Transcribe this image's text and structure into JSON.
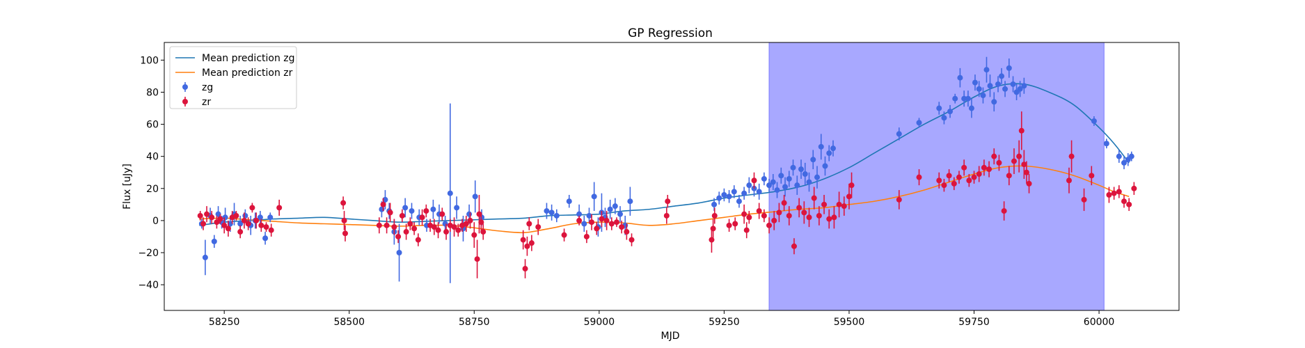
{
  "chart_data": {
    "type": "scatter",
    "title": "GP Regression",
    "xlabel": "MJD",
    "ylabel": "Flux [uJy]",
    "xlim": [
      58130,
      60160
    ],
    "ylim": [
      -56,
      111
    ],
    "xticks": [
      58250,
      58500,
      58750,
      59000,
      59250,
      59500,
      59750,
      60000
    ],
    "yticks": [
      -40,
      -20,
      0,
      20,
      40,
      60,
      80,
      100
    ],
    "grid": false,
    "legend_position": "top-left",
    "shaded_region": {
      "x": [
        59340,
        60010
      ],
      "color": "#a8a8ff"
    },
    "lines": [
      {
        "name": "Mean prediction zg",
        "color": "#1f77b4",
        "x": [
          58200,
          58250,
          58300,
          58350,
          58400,
          58450,
          58500,
          58550,
          58600,
          58650,
          58700,
          58750,
          58800,
          58850,
          58900,
          58950,
          59000,
          59050,
          59100,
          59150,
          59200,
          59250,
          59300,
          59350,
          59400,
          59450,
          59500,
          59550,
          59600,
          59650,
          59700,
          59750,
          59800,
          59850,
          59900,
          59950,
          60000,
          60030,
          60060
        ],
        "y": [
          -3,
          -1,
          0,
          1,
          1.5,
          2,
          1,
          0,
          -1,
          -0.5,
          0,
          0.5,
          1,
          1.5,
          3,
          3.5,
          4,
          6,
          7,
          9,
          11,
          14,
          16,
          18,
          21,
          26,
          33,
          42,
          51,
          60,
          68,
          77,
          84,
          85,
          80,
          72,
          58,
          48,
          36
        ]
      },
      {
        "name": "Mean prediction zr",
        "color": "#ff7f0e",
        "x": [
          58200,
          58250,
          58300,
          58350,
          58400,
          58450,
          58500,
          58550,
          58600,
          58650,
          58700,
          58750,
          58800,
          58850,
          58900,
          58950,
          59000,
          59050,
          59100,
          59150,
          59200,
          59250,
          59300,
          59350,
          59400,
          59450,
          59500,
          59550,
          59600,
          59650,
          59700,
          59750,
          59800,
          59850,
          59900,
          59950,
          60000,
          60030,
          60060
        ],
        "y": [
          1,
          1.5,
          0.5,
          -0.5,
          -1.5,
          -2,
          -2.5,
          -3,
          -3.5,
          -3,
          -3,
          -4.5,
          -6.5,
          -7.5,
          -5,
          -2,
          -1,
          -1.5,
          -3,
          -2,
          0,
          2,
          4,
          5.5,
          7,
          8,
          10,
          12,
          15,
          19,
          24,
          29,
          33,
          34,
          32,
          28,
          22,
          18,
          15
        ]
      }
    ],
    "series": [
      {
        "name": "zg",
        "color": "#4169e1",
        "x": [
          58205,
          58212,
          58222,
          58230,
          58238,
          58245,
          58252,
          58262,
          58270,
          58282,
          58292,
          58303,
          58312,
          58322,
          58332,
          58342,
          58565,
          58572,
          58580,
          58590,
          58600,
          58612,
          58625,
          58640,
          58655,
          58668,
          58680,
          58692,
          58702,
          58715,
          58728,
          58740,
          58752,
          58765,
          58895,
          58905,
          58915,
          58940,
          58960,
          58970,
          58980,
          58990,
          58998,
          59005,
          59012,
          59022,
          59032,
          59042,
          59052,
          59062,
          59230,
          59240,
          59250,
          59260,
          59270,
          59280,
          59290,
          59300,
          59310,
          59320,
          59330,
          59340,
          59348,
          59356,
          59364,
          59372,
          59380,
          59388,
          59396,
          59404,
          59412,
          59420,
          59428,
          59436,
          59444,
          59452,
          59460,
          59468,
          59600,
          59640,
          59680,
          59690,
          59702,
          59712,
          59722,
          59730,
          59738,
          59745,
          59752,
          59760,
          59768,
          59775,
          59782,
          59790,
          59798,
          59805,
          59812,
          59820,
          59828,
          59835,
          59842,
          59850,
          59990,
          60015,
          60040,
          60050,
          60058,
          60065
        ],
        "y": [
          -2,
          -23,
          3,
          -13,
          4,
          -1,
          2,
          -2,
          4,
          -2,
          3,
          -3,
          0,
          2,
          -11,
          2,
          7,
          13,
          6,
          -7,
          -20,
          8,
          6,
          2,
          -3,
          7,
          4,
          -2,
          17,
          8,
          -5,
          4,
          15,
          2,
          6,
          5,
          3,
          12,
          4,
          -2,
          3,
          15,
          -4,
          5,
          2,
          7,
          9,
          4,
          -3,
          12,
          10,
          14,
          16,
          15,
          18,
          12,
          17,
          22,
          20,
          18,
          26,
          22,
          24,
          19,
          28,
          21,
          26,
          33,
          22,
          32,
          29,
          24,
          38,
          27,
          46,
          34,
          42,
          45,
          54,
          61,
          70,
          64,
          68,
          76,
          89,
          76,
          76,
          70,
          86,
          82,
          78,
          94,
          84,
          74,
          85,
          90,
          82,
          95,
          85,
          80,
          82,
          84,
          62,
          48,
          40,
          36,
          38,
          40
        ],
        "yerr": [
          3,
          11,
          5,
          4,
          5,
          4,
          6,
          5,
          7,
          5,
          4,
          6,
          5,
          4,
          4,
          3,
          5,
          6,
          5,
          8,
          18,
          6,
          5,
          5,
          4,
          6,
          6,
          5,
          56,
          7,
          8,
          6,
          10,
          5,
          5,
          5,
          4,
          4,
          6,
          5,
          5,
          9,
          6,
          12,
          6,
          6,
          5,
          5,
          6,
          9,
          4,
          4,
          4,
          4,
          4,
          4,
          4,
          5,
          5,
          5,
          4,
          4,
          5,
          5,
          5,
          6,
          5,
          5,
          6,
          6,
          7,
          6,
          6,
          7,
          8,
          6,
          5,
          5,
          4,
          3,
          4,
          4,
          4,
          3,
          6,
          5,
          5,
          6,
          5,
          5,
          5,
          8,
          7,
          6,
          5,
          5,
          5,
          6,
          5,
          5,
          5,
          5,
          3,
          3,
          4,
          4,
          4,
          3
        ]
      },
      {
        "name": "zr",
        "color": "#dc143c",
        "x": [
          58202,
          58208,
          58215,
          58225,
          58235,
          58242,
          58250,
          58258,
          58266,
          58274,
          58282,
          58290,
          58298,
          58306,
          58314,
          58324,
          58334,
          58344,
          58360,
          58488,
          58490,
          58492,
          58560,
          58568,
          58575,
          58582,
          58590,
          58598,
          58606,
          58614,
          58622,
          58630,
          58638,
          58646,
          58654,
          58662,
          58670,
          58678,
          58686,
          58694,
          58702,
          58710,
          58718,
          58726,
          58734,
          58742,
          58750,
          58756,
          58760,
          58764,
          58768,
          58848,
          58852,
          58856,
          58860,
          58865,
          58878,
          58930,
          58960,
          58975,
          58985,
          58995,
          59005,
          59015,
          59025,
          59035,
          59045,
          59055,
          59065,
          59135,
          59137,
          59225,
          59228,
          59231,
          59260,
          59272,
          59290,
          59295,
          59300,
          59310,
          59320,
          59330,
          59340,
          59350,
          59360,
          59370,
          59380,
          59390,
          59400,
          59410,
          59420,
          59430,
          59440,
          59450,
          59460,
          59470,
          59480,
          59490,
          59500,
          59505,
          59600,
          59640,
          59680,
          59690,
          59700,
          59710,
          59720,
          59730,
          59740,
          59750,
          59760,
          59770,
          59780,
          59790,
          59800,
          59810,
          59820,
          59830,
          59840,
          59845,
          59850,
          59855,
          59860,
          59940,
          59945,
          59970,
          59985,
          60020,
          60030,
          60040,
          60050,
          60060,
          60070
        ],
        "y": [
          3,
          -2,
          4,
          2,
          -1,
          1,
          -3,
          -5,
          2,
          3,
          -7,
          0,
          -2,
          8,
          0,
          -3,
          -4,
          -6,
          8,
          11,
          0,
          -8,
          -3,
          10,
          -3,
          5,
          -4,
          -10,
          3,
          -7,
          -2,
          -5,
          -12,
          2,
          6,
          -3,
          -4,
          -6,
          4,
          -7,
          -3,
          -4,
          -6,
          -3,
          -2,
          0,
          -9,
          -24,
          4,
          -1,
          -7,
          -12,
          -30,
          -16,
          -2,
          -14,
          -4,
          -9,
          0,
          -10,
          -1,
          -5,
          1,
          0,
          -2,
          -1,
          -4,
          -7,
          -12,
          3,
          12,
          -12,
          -5,
          3,
          -3,
          -2,
          4,
          -6,
          2,
          25,
          6,
          3,
          -3,
          0,
          5,
          11,
          3,
          -16,
          8,
          5,
          2,
          14,
          3,
          10,
          1,
          2,
          10,
          9,
          15,
          22,
          13,
          27,
          25,
          22,
          28,
          23,
          27,
          33,
          25,
          27,
          29,
          33,
          32,
          40,
          36,
          6,
          28,
          37,
          40,
          56,
          35,
          30,
          23,
          25,
          40,
          13,
          28,
          16,
          17,
          18,
          12,
          10,
          20
        ],
        "yerr": [
          3,
          4,
          5,
          4,
          4,
          3,
          5,
          5,
          4,
          3,
          4,
          5,
          4,
          3,
          5,
          4,
          3,
          4,
          5,
          4,
          6,
          5,
          5,
          4,
          5,
          6,
          5,
          4,
          4,
          5,
          4,
          4,
          4,
          5,
          4,
          4,
          5,
          5,
          4,
          5,
          4,
          6,
          4,
          4,
          5,
          5,
          8,
          12,
          12,
          6,
          5,
          6,
          6,
          6,
          4,
          5,
          5,
          4,
          3,
          4,
          5,
          4,
          5,
          6,
          4,
          3,
          4,
          5,
          4,
          5,
          4,
          8,
          6,
          5,
          4,
          4,
          6,
          5,
          4,
          5,
          5,
          4,
          5,
          6,
          6,
          5,
          6,
          5,
          6,
          7,
          6,
          7,
          6,
          6,
          6,
          7,
          8,
          6,
          8,
          8,
          6,
          5,
          5,
          4,
          4,
          4,
          4,
          5,
          4,
          4,
          5,
          5,
          5,
          5,
          5,
          6,
          6,
          8,
          10,
          12,
          9,
          7,
          6,
          8,
          10,
          7,
          6,
          5,
          4,
          4,
          4,
          4,
          4
        ]
      }
    ]
  }
}
